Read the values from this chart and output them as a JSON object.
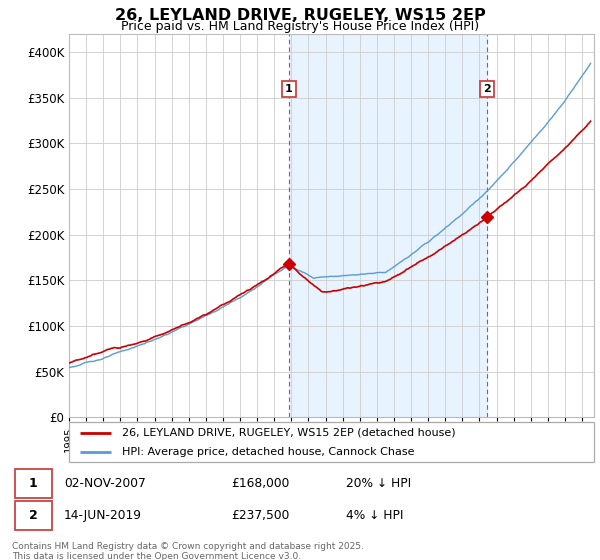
{
  "title": "26, LEYLAND DRIVE, RUGELEY, WS15 2EP",
  "subtitle": "Price paid vs. HM Land Registry's House Price Index (HPI)",
  "legend_line1": "26, LEYLAND DRIVE, RUGELEY, WS15 2EP (detached house)",
  "legend_line2": "HPI: Average price, detached house, Cannock Chase",
  "transaction1_date": "02-NOV-2007",
  "transaction1_price": "£168,000",
  "transaction1_hpi": "20% ↓ HPI",
  "transaction1_year": 2007.84,
  "transaction1_price_val": 168000,
  "transaction2_date": "14-JUN-2019",
  "transaction2_price": "£237,500",
  "transaction2_hpi": "4% ↓ HPI",
  "transaction2_year": 2019.45,
  "transaction2_price_val": 237500,
  "hpi_color": "#5b9bd5",
  "hpi_shade_color": "#ddeeff",
  "price_color": "#cc0000",
  "vline_color": "#cc4444",
  "marker_color": "#cc0000",
  "ylim_min": 0,
  "ylim_max": 420000,
  "yticks": [
    0,
    50000,
    100000,
    150000,
    200000,
    250000,
    300000,
    350000,
    400000
  ],
  "footer": "Contains HM Land Registry data © Crown copyright and database right 2025.\nThis data is licensed under the Open Government Licence v3.0.",
  "background_color": "#ffffff",
  "grid_color": "#cccccc"
}
